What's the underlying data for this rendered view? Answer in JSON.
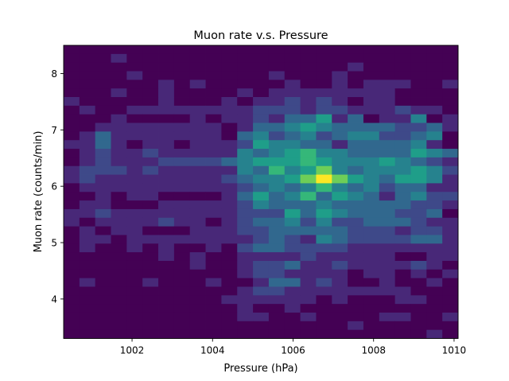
{
  "chart_data": {
    "type": "heatmap",
    "title": "Muon rate v.s. Pressure",
    "xlabel": "Pressure (hPa)",
    "ylabel": "Muon rate (counts/min)",
    "xlim": [
      1000.3,
      1010.1
    ],
    "ylim": [
      3.3,
      8.5
    ],
    "x_ticks": [
      1002,
      1004,
      1006,
      1008,
      1010
    ],
    "y_ticks": [
      4,
      5,
      6,
      7,
      8
    ],
    "x_tick_labels": [
      "1002",
      "1004",
      "1006",
      "1008",
      "1010"
    ],
    "y_tick_labels": [
      "4",
      "5",
      "6",
      "7",
      "8"
    ],
    "colormap": [
      "#440154",
      "#482878",
      "#3e4989",
      "#31688e",
      "#26828e",
      "#1f9e89",
      "#35b779",
      "#6ece58",
      "#b5de2b",
      "#fde725"
    ],
    "grid": false,
    "counts": [
      [
        0,
        0,
        0,
        0,
        0,
        0,
        0,
        0,
        0,
        0,
        0,
        0,
        0,
        0,
        0,
        0,
        0,
        0,
        0,
        0,
        0,
        0,
        0,
        0,
        0
      ],
      [
        0,
        0,
        0,
        1,
        0,
        0,
        0,
        0,
        0,
        0,
        0,
        0,
        0,
        0,
        0,
        0,
        0,
        0,
        0,
        0,
        0,
        0,
        0,
        0,
        0
      ],
      [
        0,
        0,
        0,
        0,
        0,
        0,
        0,
        0,
        0,
        0,
        0,
        0,
        0,
        0,
        0,
        0,
        0,
        0,
        1,
        0,
        0,
        0,
        0,
        0,
        0
      ],
      [
        0,
        0,
        0,
        0,
        1,
        0,
        0,
        0,
        0,
        0,
        0,
        0,
        0,
        1,
        0,
        0,
        0,
        1,
        0,
        0,
        0,
        0,
        0,
        0,
        0
      ],
      [
        0,
        0,
        0,
        0,
        0,
        0,
        1,
        0,
        1,
        0,
        0,
        0,
        0,
        0,
        1,
        0,
        0,
        1,
        0,
        1,
        1,
        1,
        0,
        0,
        1
      ],
      [
        0,
        0,
        0,
        1,
        0,
        0,
        1,
        0,
        0,
        0,
        0,
        1,
        0,
        1,
        1,
        1,
        1,
        1,
        1,
        1,
        1,
        0,
        0,
        0,
        0
      ],
      [
        1,
        0,
        0,
        0,
        0,
        0,
        1,
        0,
        0,
        0,
        1,
        0,
        1,
        1,
        2,
        1,
        2,
        1,
        0,
        1,
        1,
        0,
        0,
        0,
        0
      ],
      [
        0,
        1,
        0,
        0,
        1,
        1,
        1,
        1,
        1,
        1,
        1,
        1,
        2,
        2,
        2,
        1,
        2,
        2,
        1,
        1,
        1,
        2,
        1,
        1,
        0
      ],
      [
        0,
        0,
        0,
        1,
        0,
        0,
        0,
        0,
        1,
        0,
        1,
        1,
        2,
        1,
        3,
        3,
        5,
        1,
        3,
        0,
        1,
        1,
        4,
        0,
        1
      ],
      [
        0,
        0,
        1,
        1,
        1,
        1,
        1,
        1,
        1,
        1,
        0,
        1,
        3,
        3,
        4,
        5,
        4,
        3,
        3,
        3,
        3,
        2,
        2,
        3,
        1
      ],
      [
        0,
        1,
        3,
        1,
        1,
        1,
        1,
        1,
        1,
        1,
        0,
        3,
        4,
        2,
        3,
        4,
        2,
        3,
        4,
        4,
        2,
        2,
        3,
        4,
        0
      ],
      [
        1,
        1,
        3,
        1,
        0,
        1,
        1,
        0,
        1,
        1,
        1,
        2,
        5,
        4,
        4,
        3,
        3,
        1,
        3,
        3,
        3,
        3,
        4,
        1,
        0
      ],
      [
        0,
        1,
        2,
        1,
        1,
        2,
        1,
        1,
        1,
        1,
        1,
        4,
        3,
        4,
        5,
        6,
        4,
        4,
        3,
        3,
        3,
        3,
        5,
        4,
        3
      ],
      [
        0,
        1,
        2,
        1,
        1,
        1,
        2,
        2,
        2,
        2,
        3,
        4,
        5,
        5,
        5,
        6,
        5,
        4,
        4,
        4,
        5,
        4,
        3,
        2,
        1
      ],
      [
        1,
        2,
        2,
        2,
        1,
        2,
        1,
        1,
        1,
        1,
        1,
        4,
        3,
        6,
        4,
        5,
        7,
        4,
        3,
        4,
        4,
        4,
        5,
        4,
        2
      ],
      [
        1,
        2,
        1,
        1,
        1,
        1,
        1,
        1,
        1,
        1,
        2,
        3,
        4,
        4,
        5,
        7,
        9,
        7,
        5,
        4,
        3,
        5,
        5,
        4,
        1
      ],
      [
        0,
        1,
        1,
        1,
        1,
        1,
        1,
        1,
        1,
        1,
        1,
        2,
        3,
        4,
        3,
        4,
        6,
        4,
        3,
        4,
        2,
        3,
        3,
        1,
        1
      ],
      [
        0,
        0,
        1,
        0,
        1,
        1,
        0,
        0,
        0,
        0,
        1,
        3,
        5,
        3,
        4,
        6,
        3,
        5,
        4,
        3,
        1,
        3,
        4,
        2,
        2
      ],
      [
        0,
        1,
        1,
        0,
        0,
        0,
        1,
        1,
        1,
        1,
        1,
        2,
        4,
        3,
        3,
        3,
        4,
        3,
        3,
        3,
        3,
        3,
        2,
        2,
        1
      ],
      [
        1,
        1,
        2,
        1,
        1,
        1,
        1,
        1,
        1,
        1,
        1,
        2,
        2,
        2,
        5,
        3,
        5,
        4,
        3,
        3,
        3,
        2,
        2,
        3,
        0
      ],
      [
        1,
        0,
        1,
        1,
        1,
        1,
        2,
        1,
        1,
        0,
        1,
        2,
        3,
        3,
        4,
        2,
        4,
        2,
        2,
        3,
        3,
        3,
        2,
        1,
        1
      ],
      [
        0,
        1,
        0,
        1,
        1,
        0,
        0,
        0,
        1,
        1,
        1,
        2,
        2,
        3,
        3,
        3,
        3,
        3,
        2,
        2,
        2,
        1,
        2,
        2,
        1
      ],
      [
        0,
        1,
        1,
        0,
        1,
        1,
        1,
        1,
        1,
        1,
        1,
        1,
        2,
        3,
        2,
        1,
        4,
        3,
        2,
        2,
        2,
        2,
        3,
        3,
        1
      ],
      [
        0,
        1,
        0,
        0,
        1,
        0,
        1,
        0,
        0,
        1,
        0,
        2,
        3,
        3,
        2,
        2,
        2,
        2,
        1,
        1,
        1,
        1,
        1,
        1,
        1
      ],
      [
        0,
        0,
        0,
        0,
        0,
        0,
        1,
        0,
        1,
        0,
        0,
        1,
        1,
        1,
        1,
        2,
        1,
        1,
        1,
        1,
        1,
        0,
        0,
        1,
        1
      ],
      [
        0,
        0,
        0,
        0,
        0,
        0,
        0,
        0,
        1,
        0,
        0,
        1,
        2,
        2,
        3,
        1,
        1,
        2,
        1,
        1,
        1,
        1,
        2,
        1,
        0
      ],
      [
        0,
        0,
        0,
        0,
        0,
        0,
        0,
        0,
        0,
        0,
        0,
        1,
        2,
        2,
        1,
        1,
        1,
        1,
        0,
        1,
        1,
        0,
        1,
        0,
        1
      ],
      [
        0,
        1,
        0,
        0,
        0,
        1,
        0,
        0,
        0,
        1,
        0,
        0,
        1,
        3,
        3,
        1,
        2,
        1,
        0,
        0,
        1,
        0,
        0,
        1,
        0
      ],
      [
        0,
        0,
        0,
        0,
        0,
        0,
        0,
        0,
        0,
        0,
        0,
        1,
        2,
        2,
        1,
        1,
        1,
        1,
        1,
        1,
        1,
        1,
        0,
        0,
        0
      ],
      [
        0,
        0,
        0,
        0,
        0,
        0,
        0,
        0,
        0,
        0,
        1,
        1,
        1,
        1,
        1,
        1,
        0,
        1,
        0,
        0,
        0,
        1,
        1,
        0,
        0
      ],
      [
        0,
        0,
        0,
        0,
        0,
        0,
        0,
        0,
        0,
        0,
        0,
        1,
        0,
        0,
        1,
        0,
        0,
        0,
        0,
        0,
        0,
        0,
        0,
        0,
        0
      ],
      [
        0,
        0,
        0,
        0,
        0,
        0,
        0,
        0,
        0,
        0,
        0,
        1,
        1,
        0,
        0,
        1,
        0,
        0,
        0,
        0,
        1,
        1,
        0,
        0,
        1
      ],
      [
        0,
        0,
        0,
        0,
        0,
        0,
        0,
        0,
        0,
        0,
        0,
        0,
        0,
        0,
        0,
        0,
        0,
        0,
        1,
        0,
        0,
        0,
        0,
        0,
        0
      ],
      [
        0,
        0,
        0,
        0,
        0,
        0,
        0,
        0,
        0,
        0,
        0,
        0,
        0,
        0,
        0,
        0,
        0,
        0,
        0,
        0,
        0,
        0,
        0,
        1,
        0
      ]
    ],
    "counts_order": "rows listed from top (high muon rate) to bottom (low muon rate); columns from low to high pressure"
  }
}
